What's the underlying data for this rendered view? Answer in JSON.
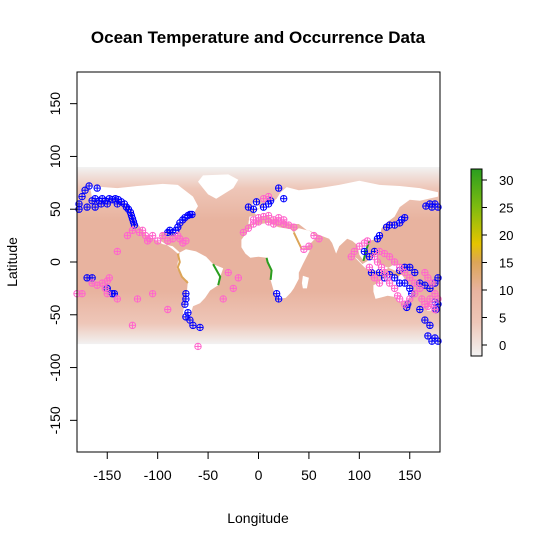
{
  "chart_data": {
    "type": "scatter",
    "title": "Ocean Temperature and Occurrence Data",
    "xlabel": "Longitude",
    "ylabel": "Latitude",
    "xlim": [
      -180,
      180
    ],
    "ylim": [
      -180,
      180
    ],
    "x_ticks": [
      -150,
      -100,
      -50,
      0,
      50,
      100,
      150
    ],
    "y_ticks": [
      -150,
      -100,
      -50,
      0,
      50,
      100,
      150
    ],
    "grid": false,
    "legend": "right",
    "raster": {
      "extent": {
        "lon": [
          -180,
          180
        ],
        "lat": [
          -78,
          90
        ]
      },
      "colorbar_ticks": [
        0,
        5,
        10,
        15,
        20,
        25,
        30
      ],
      "colorbar_range": [
        -2,
        32
      ],
      "colors": {
        "low": "#f2f2f2",
        "mid_low": "#eec6b8",
        "mid": "#e8b39f",
        "mid_high": "#dca558",
        "high": "#e6c400",
        "top": "#2a9e1f"
      }
    },
    "series": [
      {
        "marker_color": "#0000ff",
        "points": [
          [
            -178,
            55
          ],
          [
            -175,
            62
          ],
          [
            -172,
            68
          ],
          [
            -168,
            72
          ],
          [
            -165,
            58
          ],
          [
            -162,
            60
          ],
          [
            -158,
            58
          ],
          [
            -155,
            60
          ],
          [
            -152,
            58
          ],
          [
            -148,
            60
          ],
          [
            -145,
            59
          ],
          [
            -142,
            60
          ],
          [
            -139,
            59
          ],
          [
            -136,
            57
          ],
          [
            -133,
            55
          ],
          [
            -131,
            52
          ],
          [
            -129,
            50
          ],
          [
            -127,
            47
          ],
          [
            -126,
            44
          ],
          [
            -125,
            41
          ],
          [
            -124,
            38
          ],
          [
            -123,
            35
          ],
          [
            -160,
            70
          ],
          [
            -150,
            55
          ],
          [
            -140,
            55
          ],
          [
            -178,
            50
          ],
          [
            -170,
            52
          ],
          [
            -162,
            52
          ],
          [
            -156,
            55
          ],
          [
            -75,
            40
          ],
          [
            -73,
            42
          ],
          [
            -70,
            44
          ],
          [
            -68,
            45
          ],
          [
            -66,
            45
          ],
          [
            -78,
            37
          ],
          [
            -80,
            33
          ],
          [
            -82,
            30
          ],
          [
            -85,
            28
          ],
          [
            -88,
            30
          ],
          [
            -90,
            28
          ],
          [
            -72,
            -30
          ],
          [
            -72,
            -35
          ],
          [
            -73,
            -40
          ],
          [
            -70,
            -48
          ],
          [
            -72,
            -52
          ],
          [
            -68,
            -55
          ],
          [
            -65,
            -60
          ],
          [
            -58,
            -62
          ],
          [
            -170,
            -15
          ],
          [
            -165,
            -15
          ],
          [
            -150,
            -25
          ],
          [
            -145,
            -30
          ],
          [
            -143,
            -30
          ],
          [
            20,
            70
          ],
          [
            25,
            60
          ],
          [
            12,
            58
          ],
          [
            10,
            55
          ],
          [
            5,
            52
          ],
          [
            -5,
            50
          ],
          [
            -10,
            52
          ],
          [
            -2,
            57
          ],
          [
            18,
            -30
          ],
          [
            20,
            -35
          ],
          [
            130,
            35
          ],
          [
            135,
            35
          ],
          [
            140,
            37
          ],
          [
            142,
            40
          ],
          [
            145,
            42
          ],
          [
            127,
            33
          ],
          [
            120,
            25
          ],
          [
            118,
            22
          ],
          [
            115,
            10
          ],
          [
            110,
            5
          ],
          [
            105,
            10
          ],
          [
            112,
            -10
          ],
          [
            120,
            -10
          ],
          [
            125,
            -15
          ],
          [
            130,
            -12
          ],
          [
            135,
            -15
          ],
          [
            140,
            -20
          ],
          [
            145,
            -20
          ],
          [
            150,
            -25
          ],
          [
            152,
            -30
          ],
          [
            148,
            -40
          ],
          [
            147,
            -43
          ],
          [
            160,
            -45
          ],
          [
            165,
            -55
          ],
          [
            170,
            -60
          ],
          [
            168,
            -70
          ],
          [
            172,
            -75
          ],
          [
            175,
            -72
          ],
          [
            178,
            -75
          ],
          [
            166,
            53
          ],
          [
            170,
            55
          ],
          [
            175,
            55
          ],
          [
            178,
            52
          ],
          [
            172,
            52
          ],
          [
            176,
            -45
          ],
          [
            178,
            -40
          ],
          [
            175,
            -38
          ],
          [
            160,
            -20
          ],
          [
            165,
            -22
          ],
          [
            170,
            -25
          ],
          [
            175,
            -20
          ],
          [
            178,
            -15
          ],
          [
            155,
            -10
          ],
          [
            150,
            -5
          ],
          [
            145,
            -5
          ],
          [
            140,
            -8
          ]
        ]
      },
      {
        "marker_color": "#ff66cc",
        "points": [
          [
            -180,
            -30
          ],
          [
            -175,
            -30
          ],
          [
            -165,
            -20
          ],
          [
            -160,
            -22
          ],
          [
            -155,
            -20
          ],
          [
            -150,
            -18
          ],
          [
            -152,
            -25
          ],
          [
            -148,
            -15
          ],
          [
            -150,
            -30
          ],
          [
            -140,
            -35
          ],
          [
            -120,
            -35
          ],
          [
            -105,
            -30
          ],
          [
            -90,
            -45
          ],
          [
            -125,
            -60
          ],
          [
            -140,
            10
          ],
          [
            -110,
            20
          ],
          [
            -105,
            25
          ],
          [
            -100,
            20
          ],
          [
            -95,
            25
          ],
          [
            -90,
            20
          ],
          [
            -85,
            22
          ],
          [
            -80,
            25
          ],
          [
            -78,
            22
          ],
          [
            -75,
            18
          ],
          [
            -72,
            20
          ],
          [
            -130,
            25
          ],
          [
            -125,
            30
          ],
          [
            -118,
            28
          ],
          [
            -115,
            30
          ],
          [
            -112,
            25
          ],
          [
            -108,
            22
          ],
          [
            -15,
            28
          ],
          [
            -10,
            32
          ],
          [
            -5,
            40
          ],
          [
            0,
            42
          ],
          [
            5,
            43
          ],
          [
            10,
            44
          ],
          [
            15,
            40
          ],
          [
            20,
            38
          ],
          [
            25,
            36
          ],
          [
            30,
            35
          ],
          [
            35,
            33
          ],
          [
            10,
            38
          ],
          [
            15,
            36
          ],
          [
            -5,
            36
          ],
          [
            0,
            38
          ],
          [
            20,
            42
          ],
          [
            25,
            40
          ],
          [
            5,
            60
          ],
          [
            10,
            62
          ],
          [
            115,
            5
          ],
          [
            120,
            10
          ],
          [
            125,
            8
          ],
          [
            130,
            5
          ],
          [
            135,
            0
          ],
          [
            140,
            -5
          ],
          [
            145,
            -10
          ],
          [
            150,
            -15
          ],
          [
            155,
            -20
          ],
          [
            160,
            -25
          ],
          [
            155,
            -30
          ],
          [
            150,
            -35
          ],
          [
            145,
            -40
          ],
          [
            140,
            -35
          ],
          [
            138,
            -32
          ],
          [
            135,
            -25
          ],
          [
            130,
            -20
          ],
          [
            128,
            -15
          ],
          [
            125,
            -10
          ],
          [
            122,
            -5
          ],
          [
            118,
            0
          ],
          [
            110,
            -5
          ],
          [
            115,
            -15
          ],
          [
            120,
            -20
          ],
          [
            172,
            -40
          ],
          [
            175,
            -45
          ],
          [
            178,
            -35
          ],
          [
            175,
            -30
          ],
          [
            170,
            -35
          ],
          [
            168,
            -42
          ],
          [
            165,
            -40
          ],
          [
            162,
            -35
          ],
          [
            165,
            -10
          ],
          [
            168,
            -15
          ],
          [
            172,
            -20
          ],
          [
            100,
            15
          ],
          [
            105,
            18
          ],
          [
            108,
            20
          ],
          [
            95,
            10
          ],
          [
            92,
            5
          ],
          [
            55,
            25
          ],
          [
            60,
            22
          ],
          [
            50,
            15
          ],
          [
            45,
            12
          ],
          [
            -60,
            -80
          ],
          [
            -20,
            -15
          ],
          [
            -30,
            -10
          ],
          [
            -25,
            -25
          ],
          [
            -35,
            -35
          ]
        ]
      }
    ]
  }
}
